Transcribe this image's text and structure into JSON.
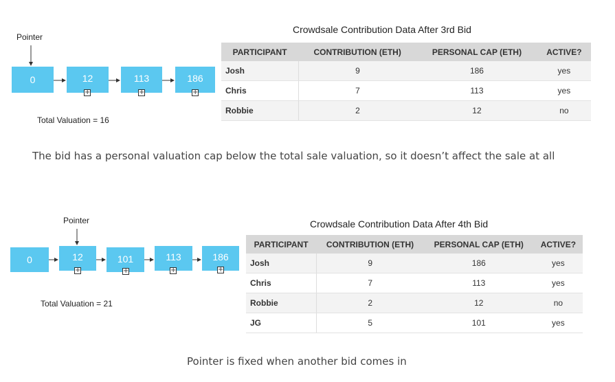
{
  "diagram1": {
    "pointer_label": "Pointer",
    "nodes": [
      "0",
      "12",
      "113",
      "186"
    ],
    "total_valuation": "Total Valuation = 16",
    "table_title": "Crowdsale Contribution Data After 3rd Bid",
    "headers": [
      "PARTICIPANT",
      "CONTRIBUTION (ETH)",
      "PERSONAL CAP (ETH)",
      "ACTIVE?"
    ],
    "rows": [
      [
        "Josh",
        "9",
        "186",
        "yes"
      ],
      [
        "Chris",
        "7",
        "113",
        "yes"
      ],
      [
        "Robbie",
        "2",
        "12",
        "no"
      ]
    ],
    "caption": "The bid has a personal valuation cap below the total sale valuation, so it doesn’t affect the sale at all"
  },
  "diagram2": {
    "pointer_label": "Pointer",
    "nodes": [
      "0",
      "12",
      "101",
      "113",
      "186"
    ],
    "total_valuation": "Total Valuation = 21",
    "table_title": "Crowdsale Contribution Data After 4th Bid",
    "headers": [
      "PARTICIPANT",
      "CONTRIBUTION (ETH)",
      "PERSONAL CAP (ETH)",
      "ACTIVE?"
    ],
    "rows": [
      [
        "Josh",
        "9",
        "186",
        "yes"
      ],
      [
        "Chris",
        "7",
        "113",
        "yes"
      ],
      [
        "Robbie",
        "2",
        "12",
        "no"
      ],
      [
        "JG",
        "5",
        "101",
        "yes"
      ]
    ],
    "caption": "Pointer is fixed when another bid comes in"
  },
  "colors": {
    "node": "#5bc8f0",
    "header": "#d8d8d8"
  }
}
